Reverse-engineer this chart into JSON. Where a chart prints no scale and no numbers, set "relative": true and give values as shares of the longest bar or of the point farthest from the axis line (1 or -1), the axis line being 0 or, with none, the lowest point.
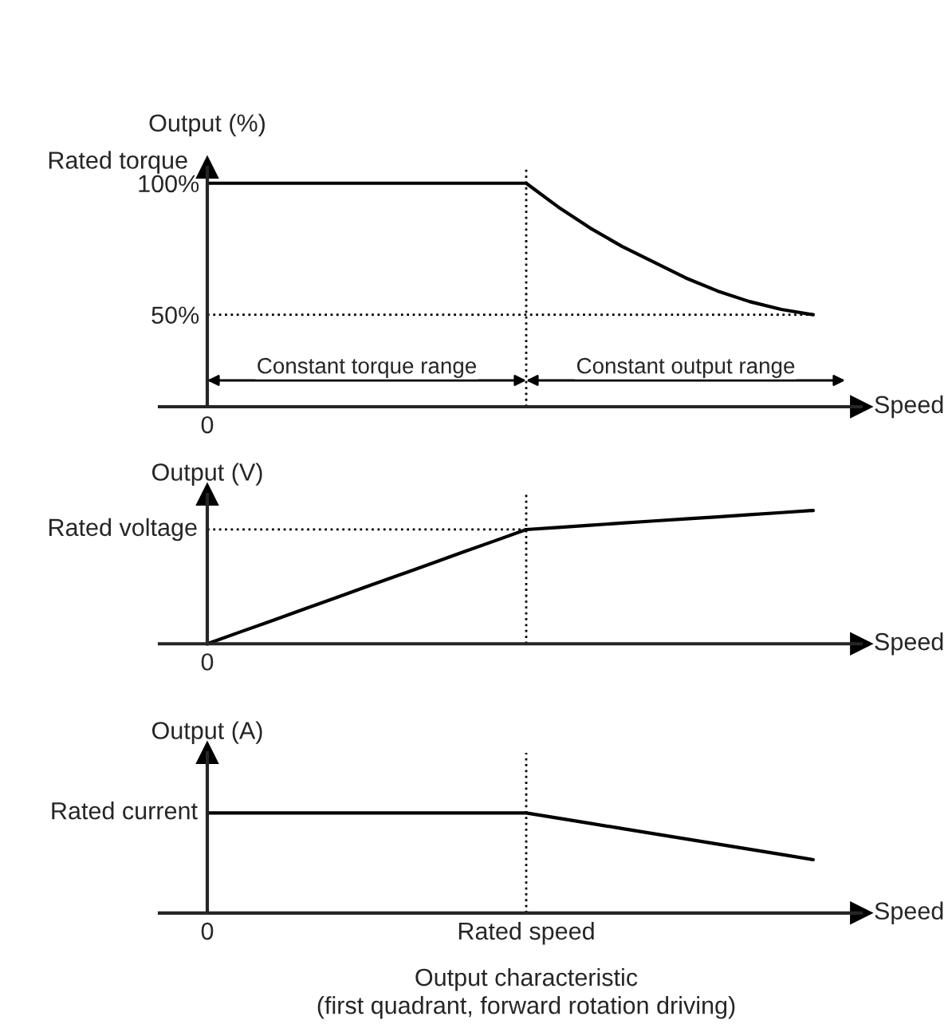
{
  "chart_data": [
    {
      "type": "line",
      "ylabel": "Output (%)",
      "xlabel": "Speed",
      "categories": [
        "0",
        null,
        null,
        null,
        null,
        null,
        null,
        null,
        null,
        null,
        null,
        null,
        null,
        null,
        null,
        null,
        null,
        null,
        null,
        null
      ],
      "series": [
        {
          "color": "#000000",
          "values": [
            100,
            100,
            100,
            100,
            100,
            100,
            100,
            100,
            100,
            100,
            100,
            91,
            83,
            76,
            70,
            64,
            59,
            55,
            52,
            50
          ]
        }
      ],
      "ylim": [
        15,
        106
      ],
      "yticks": [
        {
          "value": 100,
          "label": "100%"
        },
        {
          "value": 50,
          "label": "50%"
        }
      ],
      "ref_lines": [
        {
          "axis": "y",
          "value": 50,
          "line_style": "dotted",
          "color": "#000000"
        }
      ],
      "annotations": [
        "Rated torque",
        "Constant torque range",
        "Constant output range"
      ],
      "grid": false,
      "legend": false,
      "marker": "none",
      "line_style": "solid"
    },
    {
      "type": "line",
      "ylabel": "Output (V)",
      "xlabel": "Speed",
      "relative": true,
      "categories": [
        null,
        null,
        null,
        null,
        null,
        null,
        null,
        null,
        null,
        null,
        null,
        null,
        null,
        null,
        null,
        null,
        null,
        null,
        null,
        null
      ],
      "series": [
        {
          "color": "#000000",
          "values": [
            0,
            0.086,
            0.171,
            0.257,
            0.343,
            0.429,
            0.514,
            0.6,
            0.686,
            0.771,
            0.857,
            0.873,
            0.889,
            0.905,
            0.921,
            0.937,
            0.952,
            0.968,
            0.984,
            1.0
          ]
        }
      ],
      "ref_lines": [
        {
          "axis": "y",
          "value": 0.857,
          "line_style": "dotted",
          "color": "#000000"
        }
      ],
      "annotations": [
        "Rated voltage",
        "0"
      ],
      "grid": false,
      "legend": false,
      "marker": "none",
      "line_style": "solid"
    },
    {
      "type": "line",
      "ylabel": "Output (A)",
      "xlabel": "Speed",
      "relative": true,
      "categories": [
        "0",
        null,
        null,
        null,
        null,
        null,
        null,
        null,
        null,
        null,
        "Rated speed",
        null,
        null,
        null,
        null,
        null,
        null,
        null,
        null,
        null
      ],
      "series": [
        {
          "color": "#000000",
          "values": [
            1,
            1,
            1,
            1,
            1,
            1,
            1,
            1,
            1,
            1,
            1,
            0.948,
            0.896,
            0.844,
            0.792,
            0.741,
            0.689,
            0.637,
            0.585,
            0.533
          ]
        }
      ],
      "annotations": [
        "Rated current",
        "Output characteristic\n(first quadrant, forward rotation driving)"
      ],
      "grid": false,
      "legend": false,
      "marker": "none",
      "line_style": "solid"
    }
  ]
}
